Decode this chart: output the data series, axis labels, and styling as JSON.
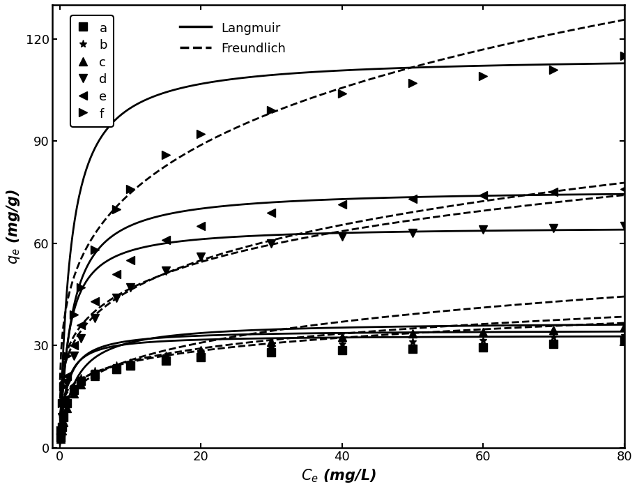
{
  "title": "",
  "xlabel": "$C_e$ (mg/L)",
  "ylabel": "$q_e$ (mg/g)",
  "xlim": [
    -1,
    80
  ],
  "ylim": [
    0,
    130
  ],
  "xticks": [
    0,
    20,
    40,
    60,
    80
  ],
  "yticks": [
    0,
    30,
    60,
    90,
    120
  ],
  "series": [
    {
      "label": "a",
      "marker": "s",
      "qmax_langmuir": 33.0,
      "KL": 1.2,
      "KF": 16.5,
      "n": 5.5,
      "data_x": [
        0.1,
        0.3,
        0.5,
        1.0,
        2.0,
        3.0,
        5.0,
        8.0,
        10.0,
        15.0,
        20.0,
        30.0,
        40.0,
        50.0,
        60.0,
        70.0,
        80.0
      ],
      "data_y": [
        3.0,
        6.0,
        9.0,
        13.0,
        17.0,
        19.5,
        21.5,
        23.0,
        24.0,
        25.5,
        26.5,
        28.0,
        28.5,
        29.0,
        29.5,
        30.5,
        31.5
      ]
    },
    {
      "label": "b",
      "marker": "*",
      "qmax_langmuir": 34.5,
      "KL": 1.0,
      "KF": 16.0,
      "n": 5.0,
      "data_x": [
        0.1,
        0.3,
        0.5,
        1.0,
        2.0,
        3.0,
        5.0,
        8.0,
        10.0,
        15.0,
        20.0,
        30.0,
        40.0,
        50.0,
        60.0,
        70.0,
        80.0
      ],
      "data_y": [
        3.5,
        6.5,
        9.5,
        13.5,
        18.0,
        20.5,
        22.5,
        24.0,
        25.0,
        27.0,
        28.0,
        29.5,
        30.5,
        31.0,
        31.5,
        32.5,
        33.0
      ]
    },
    {
      "label": "c",
      "marker": "^",
      "qmax_langmuir": 37.0,
      "KL": 0.5,
      "KF": 14.0,
      "n": 3.8,
      "data_x": [
        0.1,
        0.3,
        0.5,
        1.0,
        2.0,
        3.0,
        5.0,
        8.0,
        10.0,
        15.0,
        20.0,
        30.0,
        40.0,
        50.0,
        60.0,
        70.0,
        80.0
      ],
      "data_y": [
        2.5,
        5.0,
        7.5,
        11.5,
        16.0,
        18.5,
        21.0,
        23.0,
        24.0,
        26.5,
        28.5,
        31.0,
        32.5,
        33.5,
        34.0,
        34.5,
        35.5
      ]
    },
    {
      "label": "d",
      "marker": "v",
      "qmax_langmuir": 65.0,
      "KL": 0.8,
      "KF": 28.0,
      "n": 4.5,
      "data_x": [
        0.1,
        0.3,
        0.5,
        1.0,
        2.0,
        3.0,
        5.0,
        8.0,
        10.0,
        15.0,
        20.0,
        30.0,
        40.0,
        50.0,
        60.0,
        70.0,
        80.0
      ],
      "data_y": [
        4.0,
        9.0,
        13.0,
        19.0,
        27.0,
        32.0,
        38.0,
        44.0,
        47.0,
        52.0,
        56.0,
        60.0,
        62.0,
        63.0,
        64.0,
        64.5,
        65.0
      ]
    },
    {
      "label": "e",
      "marker": "<",
      "qmax_langmuir": 76.0,
      "KL": 0.6,
      "KF": 26.0,
      "n": 4.0,
      "data_x": [
        0.1,
        0.3,
        0.5,
        1.0,
        2.0,
        3.0,
        5.0,
        8.0,
        10.0,
        15.0,
        20.0,
        30.0,
        40.0,
        50.0,
        60.0,
        70.0,
        80.0
      ],
      "data_y": [
        4.5,
        10.0,
        14.0,
        21.0,
        30.0,
        36.0,
        43.0,
        51.0,
        55.0,
        61.0,
        65.0,
        69.0,
        71.5,
        73.0,
        74.0,
        75.0,
        76.0
      ]
    },
    {
      "label": "f",
      "marker": ">",
      "qmax_langmuir": 115.0,
      "KL": 0.65,
      "KF": 42.0,
      "n": 4.0,
      "data_x": [
        0.1,
        0.3,
        0.5,
        1.0,
        2.0,
        3.0,
        5.0,
        8.0,
        10.0,
        15.0,
        20.0,
        30.0,
        40.0,
        50.0,
        60.0,
        70.0,
        80.0
      ],
      "data_y": [
        5.0,
        13.0,
        18.0,
        27.0,
        39.0,
        47.0,
        58.0,
        70.0,
        76.0,
        86.0,
        92.0,
        99.0,
        104.0,
        107.0,
        109.0,
        111.0,
        115.0
      ]
    }
  ],
  "color": "black",
  "fontsize": 15,
  "tick_fontsize": 13,
  "markersize": 8,
  "linewidth": 2.0
}
